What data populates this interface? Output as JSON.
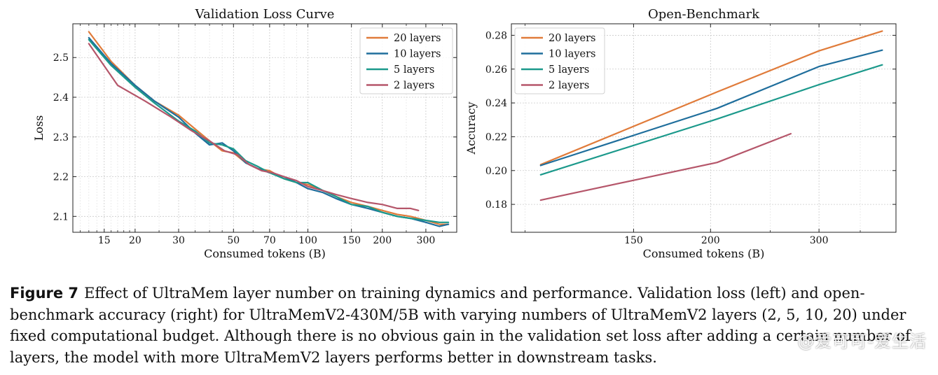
{
  "chart_data": [
    {
      "type": "line",
      "title": "Validation Loss Curve",
      "xlabel": "Consumed tokens (B)",
      "ylabel": "Loss",
      "xscale": "log",
      "xlim": [
        11.2,
        400
      ],
      "ylim": [
        2.06,
        2.585
      ],
      "xticks": [
        15,
        20,
        30,
        50,
        70,
        100,
        150,
        200,
        300
      ],
      "yticks": [
        2.1,
        2.2,
        2.3,
        2.4,
        2.5
      ],
      "grid": true,
      "legend": "top-right",
      "series": [
        {
          "name": "20 layers",
          "color": "#e07b3a",
          "x": [
            13,
            16,
            20,
            24,
            30,
            35,
            40,
            45,
            50,
            56,
            63,
            70,
            80,
            90,
            100,
            115,
            130,
            150,
            175,
            200,
            230,
            260,
            300,
            340,
            370
          ],
          "y": [
            2.565,
            2.49,
            2.43,
            2.39,
            2.355,
            2.32,
            2.29,
            2.265,
            2.26,
            2.235,
            2.22,
            2.215,
            2.195,
            2.185,
            2.18,
            2.165,
            2.15,
            2.135,
            2.125,
            2.115,
            2.105,
            2.1,
            2.09,
            2.08,
            2.08
          ]
        },
        {
          "name": "10 layers",
          "color": "#1f6e9c",
          "x": [
            13,
            16,
            20,
            24,
            30,
            35,
            40,
            45,
            50,
            56,
            63,
            70,
            80,
            90,
            100,
            115,
            130,
            150,
            175,
            200,
            230,
            260,
            300,
            340,
            370
          ],
          "y": [
            2.55,
            2.485,
            2.43,
            2.39,
            2.35,
            2.31,
            2.28,
            2.285,
            2.265,
            2.235,
            2.22,
            2.21,
            2.2,
            2.185,
            2.17,
            2.16,
            2.145,
            2.13,
            2.12,
            2.11,
            2.1,
            2.095,
            2.085,
            2.075,
            2.08
          ]
        },
        {
          "name": "5 layers",
          "color": "#1b998b",
          "x": [
            13,
            16,
            20,
            24,
            30,
            35,
            40,
            45,
            50,
            56,
            63,
            70,
            80,
            90,
            100,
            115,
            130,
            150,
            175,
            200,
            230,
            260,
            300,
            340,
            370
          ],
          "y": [
            2.545,
            2.48,
            2.425,
            2.385,
            2.34,
            2.315,
            2.285,
            2.28,
            2.27,
            2.24,
            2.225,
            2.21,
            2.195,
            2.185,
            2.185,
            2.165,
            2.15,
            2.13,
            2.125,
            2.11,
            2.1,
            2.095,
            2.09,
            2.085,
            2.085
          ]
        },
        {
          "name": "2 layers",
          "color": "#b5566a",
          "x": [
            13,
            17,
            22,
            28,
            34,
            40,
            46,
            52,
            58,
            65,
            72,
            80,
            90,
            100,
            115,
            130,
            150,
            175,
            200,
            230,
            260,
            280
          ],
          "y": [
            2.535,
            2.43,
            2.39,
            2.35,
            2.315,
            2.29,
            2.265,
            2.255,
            2.23,
            2.215,
            2.21,
            2.2,
            2.19,
            2.175,
            2.165,
            2.155,
            2.145,
            2.135,
            2.13,
            2.12,
            2.12,
            2.115
          ]
        }
      ]
    },
    {
      "type": "line",
      "title": "Open-Benchmark",
      "xlabel": "Consumed tokens (B)",
      "ylabel": "Accuracy",
      "xscale": "log",
      "xlim": [
        95,
        400
      ],
      "ylim": [
        0.1635,
        0.2868
      ],
      "xticks": [
        150,
        200,
        300
      ],
      "yticks": [
        0.18,
        0.2,
        0.22,
        0.24,
        0.26,
        0.28
      ],
      "grid": true,
      "legend": "top-left",
      "series": [
        {
          "name": "20 layers",
          "color": "#e07b3a",
          "x": [
            106,
            205,
            300,
            380
          ],
          "y": [
            0.2035,
            0.2465,
            0.2708,
            0.2825
          ]
        },
        {
          "name": "10 layers",
          "color": "#1f6e9c",
          "x": [
            106,
            205,
            300,
            380
          ],
          "y": [
            0.203,
            0.2368,
            0.2615,
            0.2712
          ]
        },
        {
          "name": "5 layers",
          "color": "#1b998b",
          "x": [
            106,
            205,
            300,
            380
          ],
          "y": [
            0.1975,
            0.2305,
            0.2508,
            0.2625
          ]
        },
        {
          "name": "2 layers",
          "color": "#b5566a",
          "x": [
            106,
            205,
            270
          ],
          "y": [
            0.1825,
            0.2048,
            0.2218
          ]
        }
      ]
    }
  ],
  "caption": {
    "label": "Figure 7",
    "text": "Effect of UltraMem layer number on training dynamics and performance. Validation loss (left) and open-benchmark accuracy (right) for UltraMemV2-430M/5B with varying numbers of UltraMemV2 layers (2, 5, 10, 20) under fixed computational budget. Although there is no obvious gain in the validation set loss after adding a certain number of layers, the model with more UltraMemV2 layers performs better in downstream tasks."
  },
  "watermark": "@爱可可-爱生活"
}
